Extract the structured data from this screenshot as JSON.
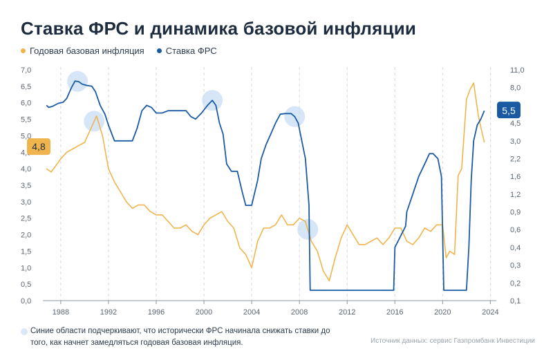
{
  "title": "Ставка ФРС и динамика базовой инфляции",
  "legend": {
    "inflation": "Годовая базовая инфляция",
    "fed": "Ставка ФРС"
  },
  "colors": {
    "inflation": "#f0b44c",
    "fed": "#1a5aa3",
    "highlight": "#cfe2f6",
    "grid": "#d3d8de"
  },
  "footnote": "Синие области подчеркивают, что исторически ФРС начинала снижать ставки до того, как начнет замедляться годовая базовая инфляция.",
  "source": "Источник данных: сервис Газпромбанк Инвестиции",
  "chart_data": {
    "type": "line",
    "title": "Ставка ФРС и динамика базовой инфляции",
    "x_ticks": [
      "1988",
      "1992",
      "1996",
      "2000",
      "2004",
      "2008",
      "2012",
      "2016",
      "2020",
      "2024"
    ],
    "y_left_ticks": [
      "7,0",
      "6,5",
      "6,0",
      "5,5",
      "5,0",
      "4,5",
      "4,0",
      "3,5",
      "3,0",
      "2,5",
      "2,0",
      "1,5",
      "1,0",
      "0,5",
      "0,0"
    ],
    "y_left_range": [
      0,
      7
    ],
    "y_right_ticks": [
      "11,0",
      "8,0",
      "6,0",
      "4,5",
      "3,0",
      "2,2",
      "1,6",
      "1,2",
      "0,9",
      "0,6",
      "0,4",
      "0,3",
      "0,2",
      "0,1"
    ],
    "x_range": [
      1986.5,
      2024.5
    ],
    "grid": "vertical dashed",
    "legend_position": "top-left",
    "annotations": [
      {
        "label": "4,8",
        "series": "Годовая базовая инфляция"
      },
      {
        "label": "5,5",
        "series": "Ставка ФРС"
      }
    ],
    "highlights_x": [
      1989.4,
      1990.8,
      2000.7,
      2007.6,
      2008.7
    ],
    "series": [
      {
        "name": "Годовая базовая инфляция",
        "x": [
          1986.8,
          1987.2,
          1987.6,
          1988.0,
          1988.5,
          1989.0,
          1989.5,
          1990.0,
          1990.5,
          1991.0,
          1991.5,
          1992.0,
          1992.5,
          1993.0,
          1993.5,
          1994.0,
          1994.5,
          1995.0,
          1995.5,
          1996.0,
          1996.5,
          1997.0,
          1997.5,
          1998.0,
          1998.5,
          1999.0,
          1999.5,
          2000.0,
          2000.5,
          2001.0,
          2001.5,
          2002.0,
          2002.5,
          2003.0,
          2003.5,
          2004.0,
          2004.5,
          2005.0,
          2005.5,
          2006.0,
          2006.5,
          2007.0,
          2007.5,
          2008.0,
          2008.5,
          2009.0,
          2009.5,
          2010.0,
          2010.5,
          2011.0,
          2011.5,
          2012.0,
          2012.5,
          2013.0,
          2013.5,
          2014.0,
          2014.5,
          2015.0,
          2015.5,
          2016.0,
          2016.5,
          2017.0,
          2017.5,
          2018.0,
          2018.5,
          2019.0,
          2019.5,
          2020.0,
          2020.3,
          2020.6,
          2021.0,
          2021.3,
          2021.6,
          2022.0,
          2022.3,
          2022.6,
          2023.0,
          2023.3,
          2023.5
        ],
        "values": [
          4.0,
          3.9,
          4.1,
          4.3,
          4.5,
          4.6,
          4.7,
          4.8,
          5.2,
          5.6,
          5.0,
          4.0,
          3.6,
          3.3,
          3.0,
          2.8,
          2.9,
          2.9,
          2.7,
          2.6,
          2.6,
          2.4,
          2.2,
          2.2,
          2.3,
          2.1,
          2.0,
          2.3,
          2.5,
          2.6,
          2.7,
          2.4,
          2.2,
          1.6,
          1.4,
          1.0,
          1.8,
          2.2,
          2.2,
          2.3,
          2.6,
          2.3,
          2.3,
          2.5,
          2.4,
          1.8,
          1.5,
          0.9,
          0.6,
          1.3,
          1.9,
          2.3,
          2.0,
          1.7,
          1.7,
          1.8,
          1.9,
          1.7,
          1.9,
          2.2,
          2.2,
          1.8,
          1.7,
          1.9,
          2.2,
          2.1,
          2.3,
          2.3,
          1.3,
          1.5,
          1.4,
          3.8,
          4.0,
          6.1,
          6.4,
          6.6,
          5.6,
          5.1,
          4.8
        ]
      },
      {
        "name": "Ставка ФРС",
        "x": [
          1986.8,
          1987.0,
          1987.3,
          1987.8,
          1988.2,
          1988.5,
          1988.9,
          1989.2,
          1989.5,
          1989.8,
          1990.2,
          1990.6,
          1990.9,
          1991.3,
          1991.7,
          1992.0,
          1992.5,
          1993.0,
          1993.5,
          1994.0,
          1994.4,
          1994.8,
          1995.2,
          1995.6,
          1996.0,
          1996.5,
          1997.0,
          1997.5,
          1998.0,
          1998.5,
          1998.9,
          1999.3,
          1999.8,
          2000.3,
          2000.7,
          2001.0,
          2001.3,
          2001.6,
          2001.9,
          2002.3,
          2002.8,
          2003.2,
          2003.5,
          2004.0,
          2004.5,
          2004.8,
          2005.2,
          2005.6,
          2006.0,
          2006.4,
          2006.8,
          2007.3,
          2007.6,
          2007.9,
          2008.2,
          2008.5,
          2008.8,
          2008.9,
          2009.5,
          2011.0,
          2013.0,
          2015.0,
          2015.9,
          2016.0,
          2016.9,
          2017.0,
          2017.5,
          2018.0,
          2018.5,
          2018.9,
          2019.2,
          2019.6,
          2019.9,
          2020.1,
          2020.3,
          2021.0,
          2022.0,
          2022.2,
          2022.4,
          2022.6,
          2022.9,
          2023.2,
          2023.5
        ],
        "values": [
          6.0,
          5.8,
          5.9,
          6.2,
          6.3,
          6.7,
          8.0,
          9.0,
          8.9,
          8.5,
          8.3,
          8.2,
          7.5,
          6.0,
          5.2,
          4.3,
          3.0,
          3.0,
          3.0,
          3.0,
          4.0,
          5.5,
          6.0,
          5.8,
          5.3,
          5.3,
          5.5,
          5.5,
          5.5,
          5.5,
          5.0,
          4.8,
          5.3,
          6.0,
          6.5,
          6.0,
          4.5,
          3.5,
          2.0,
          1.75,
          1.75,
          1.25,
          1.0,
          1.0,
          1.5,
          2.2,
          2.8,
          3.5,
          4.5,
          5.2,
          5.25,
          5.25,
          5.0,
          4.5,
          3.0,
          2.2,
          1.0,
          0.15,
          0.15,
          0.15,
          0.15,
          0.15,
          0.15,
          0.4,
          0.65,
          0.9,
          1.2,
          1.6,
          2.0,
          2.4,
          2.4,
          2.2,
          1.6,
          0.15,
          0.15,
          0.15,
          0.15,
          0.4,
          1.5,
          3.0,
          4.3,
          4.8,
          5.5
        ]
      }
    ]
  }
}
